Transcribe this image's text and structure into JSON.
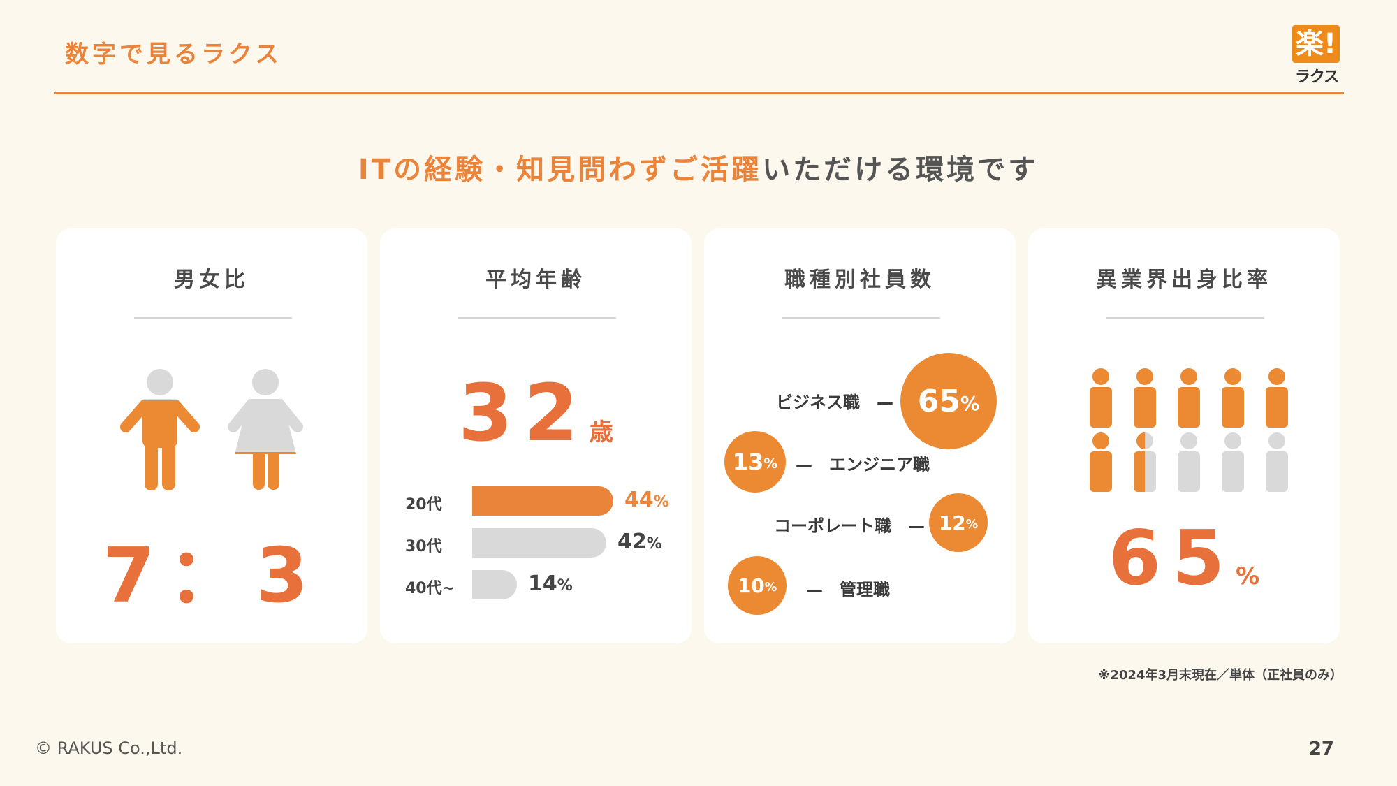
{
  "header": {
    "title": "数字で見るラクス"
  },
  "logo": {
    "mark": "楽!",
    "text": "ラクス"
  },
  "headline": {
    "highlight": "ITの経験・知見問わずご活躍",
    "rest": "いただける環境です"
  },
  "cards": {
    "gender": {
      "title": "男女比",
      "ratio": "7：3",
      "male_fraction": 0.7,
      "female_fraction": 0.3
    },
    "age": {
      "title": "平均年齢",
      "average": "32",
      "unit": "歳",
      "rows": [
        {
          "label": "20代",
          "value": "44",
          "pct": "%",
          "fraction": 0.44,
          "highlight": true
        },
        {
          "label": "30代",
          "value": "42",
          "pct": "%",
          "fraction": 0.42,
          "highlight": false
        },
        {
          "label": "40代~",
          "value": "14",
          "pct": "%",
          "fraction": 0.14,
          "highlight": false
        }
      ]
    },
    "jobs": {
      "title": "職種別社員数",
      "items": [
        {
          "label": "ビジネス職",
          "value": "65",
          "pct": "%",
          "dash": "—"
        },
        {
          "label": "エンジニア職",
          "value": "13",
          "pct": "%",
          "dash": "—"
        },
        {
          "label": "コーポレート職",
          "value": "12",
          "pct": "%",
          "dash": "—"
        },
        {
          "label": "管理職",
          "value": "10",
          "pct": "%",
          "dash": "—"
        }
      ]
    },
    "industry": {
      "title": "異業界出身比率",
      "value": "65",
      "pct": "%",
      "filled_people": 6.5,
      "total_people": 10
    }
  },
  "footnote": "※2024年3月末現在／単体（正社員のみ）",
  "copyright": "© RAKUS Co.,Ltd.",
  "page_number": "27",
  "colors": {
    "accent": "#e9843a",
    "accent_dark": "#e8703a",
    "gray": "#d9d9d9",
    "background": "#fdf8ee"
  }
}
